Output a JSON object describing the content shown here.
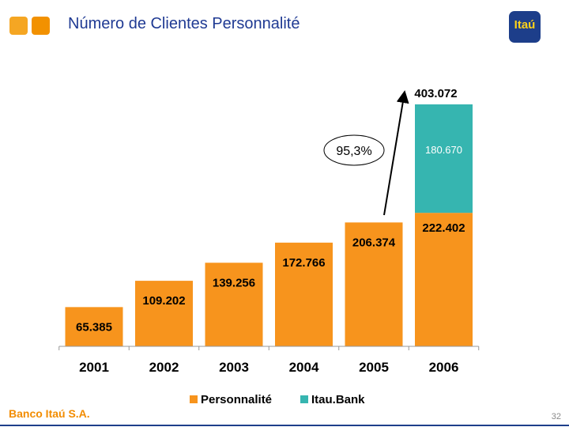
{
  "slide": {
    "title": "Número de Clientes Personnalité",
    "logo_text": "Itaú",
    "footer_brand": "Banco Itaú S.A.",
    "page_number": "32",
    "colors": {
      "title": "#1f3a93",
      "deco_square_1": "#f5a623",
      "deco_square_2": "#f29100",
      "logo_bg": "#1d3e8a",
      "logo_text": "#ffd21a",
      "footer_brand": "#f28c00"
    }
  },
  "chart_data": {
    "type": "bar",
    "stacked": true,
    "categories": [
      "2001",
      "2002",
      "2003",
      "2004",
      "2005",
      "2006"
    ],
    "series": [
      {
        "name": "Personnalité",
        "color": "#f7941d",
        "values": [
          65385,
          109202,
          139256,
          172766,
          206374,
          222402
        ],
        "labels": [
          "65.385",
          "109.202",
          "139.256",
          "172.766",
          "206.374",
          "222.402"
        ]
      },
      {
        "name": "Itau.Bank",
        "color": "#36b5b0",
        "values": [
          0,
          0,
          0,
          0,
          0,
          180670
        ],
        "labels": [
          "",
          "",
          "",
          "",
          "",
          "180.670"
        ]
      }
    ],
    "totals": [
      {
        "category": "2006",
        "value": 403072,
        "label": "403.072"
      }
    ],
    "annotation": {
      "text": "95,3%",
      "from": "2005",
      "to": "2006"
    },
    "ylim": [
      0,
      403072
    ],
    "legend_position": "bottom",
    "grid": false
  }
}
